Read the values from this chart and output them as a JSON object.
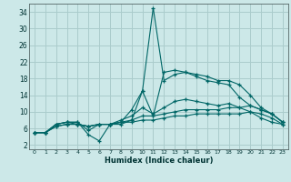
{
  "xlabel": "Humidex (Indice chaleur)",
  "bg_color": "#cce8e8",
  "grid_color": "#aacccc",
  "line_color": "#006666",
  "xlim": [
    -0.5,
    23.5
  ],
  "ylim": [
    1,
    36
  ],
  "xticks": [
    0,
    1,
    2,
    3,
    4,
    5,
    6,
    7,
    8,
    9,
    10,
    11,
    12,
    13,
    14,
    15,
    16,
    17,
    18,
    19,
    20,
    21,
    22,
    23
  ],
  "yticks": [
    2,
    6,
    10,
    14,
    18,
    22,
    26,
    30,
    34
  ],
  "curves": [
    [
      5.0,
      5.0,
      7.0,
      7.5,
      7.5,
      4.5,
      3.0,
      7.0,
      7.0,
      8.0,
      15.0,
      35.0,
      17.5,
      19.0,
      19.5,
      19.0,
      18.5,
      17.5,
      17.5,
      16.5,
      14.0,
      11.0,
      9.5,
      7.5
    ],
    [
      5.0,
      5.0,
      7.0,
      7.5,
      7.5,
      5.5,
      7.0,
      7.0,
      7.5,
      10.5,
      15.0,
      9.0,
      19.5,
      20.0,
      19.5,
      18.5,
      17.5,
      17.0,
      16.5,
      13.5,
      11.5,
      10.5,
      9.5,
      7.5
    ],
    [
      5.0,
      5.0,
      7.0,
      7.5,
      7.0,
      6.5,
      7.0,
      7.0,
      8.0,
      9.0,
      11.0,
      9.5,
      11.0,
      12.5,
      13.0,
      12.5,
      12.0,
      11.5,
      12.0,
      11.0,
      10.0,
      8.5,
      7.5,
      7.0
    ],
    [
      5.0,
      5.0,
      6.5,
      7.0,
      7.0,
      6.5,
      7.0,
      7.0,
      7.5,
      8.0,
      9.0,
      9.0,
      9.5,
      10.0,
      10.5,
      10.5,
      10.5,
      10.5,
      11.0,
      11.0,
      11.5,
      10.5,
      9.5,
      7.5
    ],
    [
      5.0,
      5.0,
      6.5,
      7.0,
      7.0,
      6.5,
      7.0,
      7.0,
      7.5,
      7.5,
      8.0,
      8.0,
      8.5,
      9.0,
      9.0,
      9.5,
      9.5,
      9.5,
      9.5,
      9.5,
      10.0,
      9.5,
      8.5,
      7.0
    ]
  ]
}
